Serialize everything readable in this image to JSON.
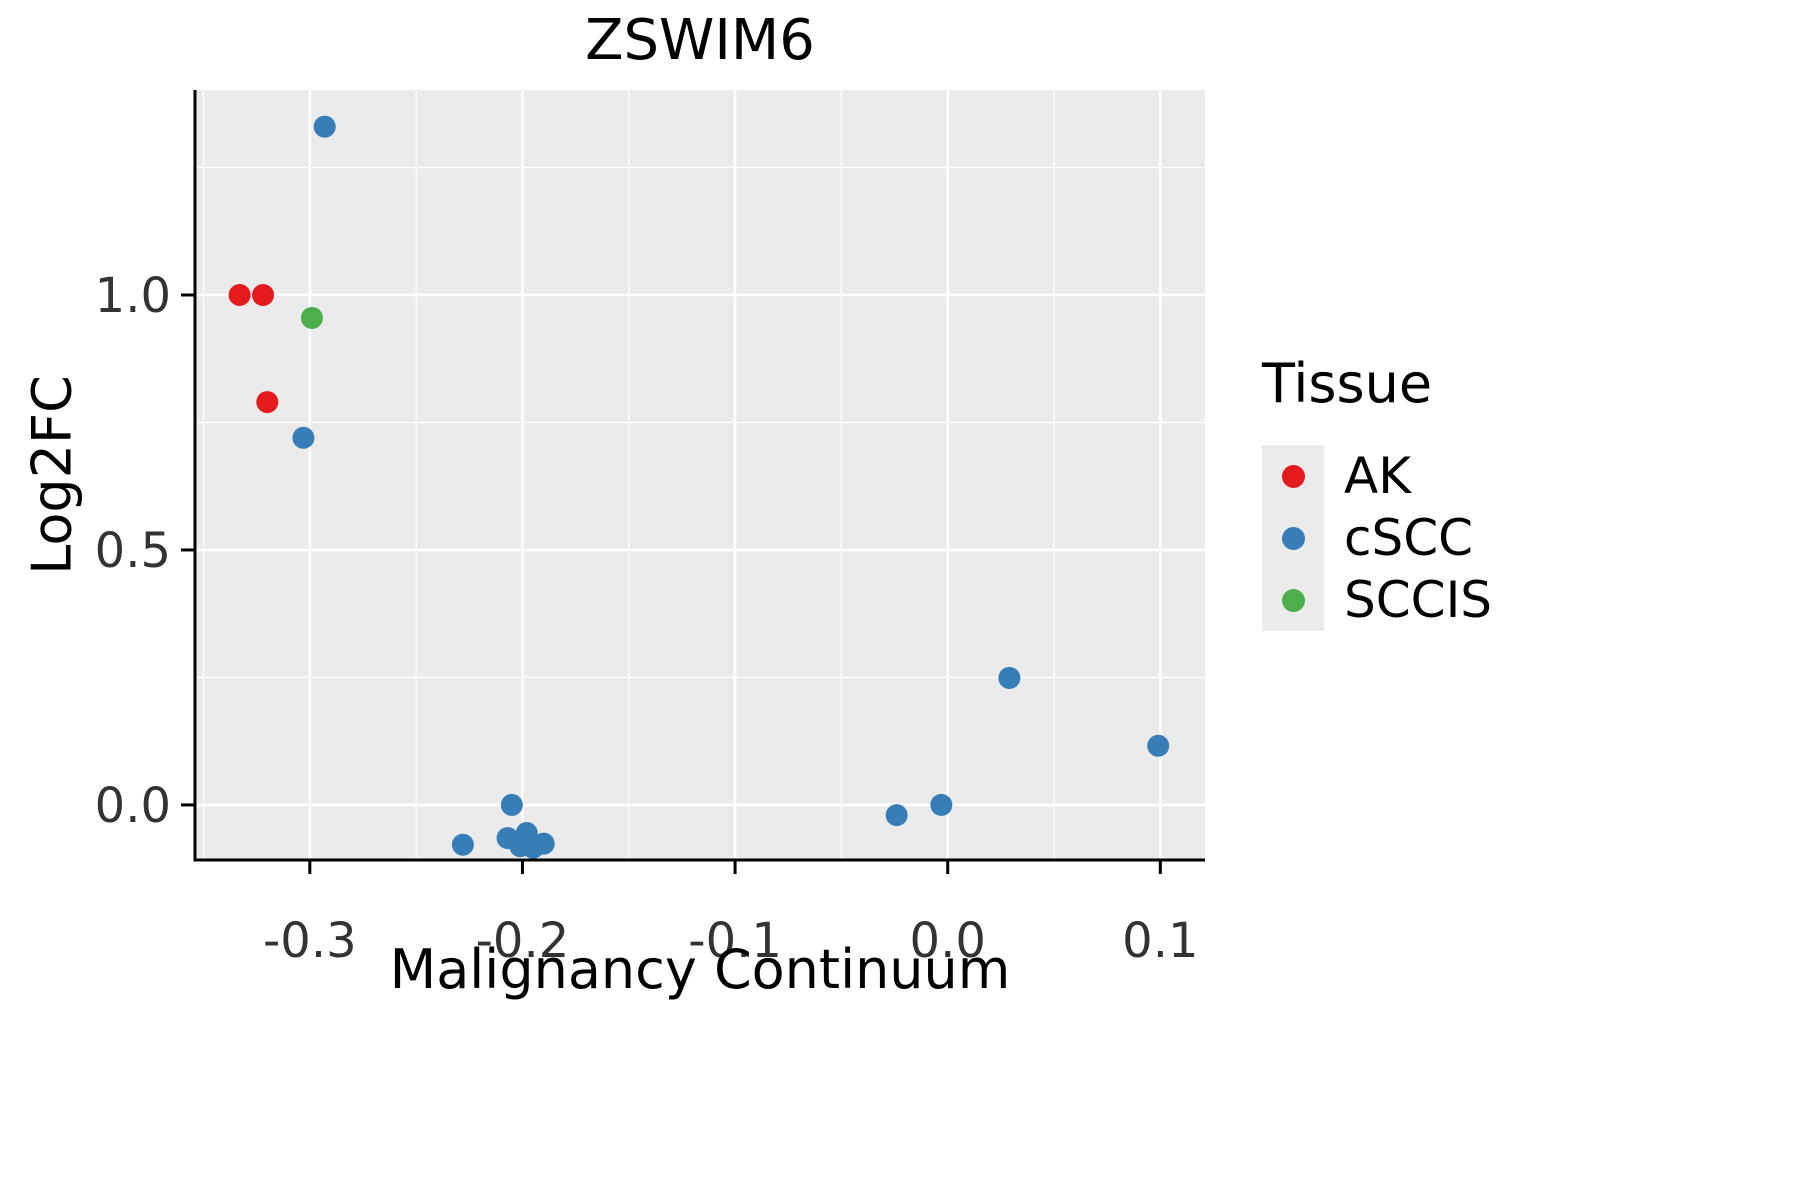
{
  "chart_data": {
    "type": "scatter",
    "title": "ZSWIM6",
    "xlabel": "Malignancy Continuum",
    "ylabel": "Log2FC",
    "xlim": [
      -0.354,
      0.121
    ],
    "ylim": [
      -0.108,
      1.402
    ],
    "x_ticks": [
      -0.3,
      -0.2,
      -0.1,
      0.0,
      0.1
    ],
    "x_tick_labels": [
      "-0.3",
      "-0.2",
      "-0.1",
      "0.0",
      "0.1"
    ],
    "x_minor_ticks": [
      -0.35,
      -0.25,
      -0.15,
      -0.05,
      0.05
    ],
    "y_ticks": [
      0.0,
      0.5,
      1.0
    ],
    "y_tick_labels": [
      "0.0",
      "0.5",
      "1.0"
    ],
    "y_minor_ticks": [
      0.25,
      0.75,
      1.25
    ],
    "grid": true,
    "panel_background": "#EBEBEB",
    "grid_color": "#FFFFFF",
    "axis_color": "#000000",
    "tick_label_color": "#333333",
    "legend": {
      "title": "Tissue",
      "position": "right",
      "entries": [
        {
          "label": "AK",
          "color": "#E41A1C"
        },
        {
          "label": "cSCC",
          "color": "#377EB8"
        },
        {
          "label": "SCCIS",
          "color": "#4DAF4A"
        }
      ]
    },
    "series": [
      {
        "name": "AK",
        "color": "#E41A1C",
        "points": [
          [
            -0.333,
            1.0
          ],
          [
            -0.322,
            1.0
          ],
          [
            -0.32,
            0.79
          ]
        ]
      },
      {
        "name": "cSCC",
        "color": "#377EB8",
        "points": [
          [
            -0.293,
            1.33
          ],
          [
            -0.303,
            0.72
          ],
          [
            -0.228,
            -0.078
          ],
          [
            -0.205,
            0.0
          ],
          [
            -0.207,
            -0.065
          ],
          [
            -0.201,
            -0.081
          ],
          [
            -0.198,
            -0.055
          ],
          [
            -0.195,
            -0.084
          ],
          [
            -0.19,
            -0.076
          ],
          [
            -0.024,
            -0.02
          ],
          [
            -0.003,
            0.0
          ],
          [
            0.029,
            0.249
          ],
          [
            0.099,
            0.116
          ]
        ]
      },
      {
        "name": "SCCIS",
        "color": "#4DAF4A",
        "points": [
          [
            -0.299,
            0.955
          ]
        ]
      }
    ]
  }
}
